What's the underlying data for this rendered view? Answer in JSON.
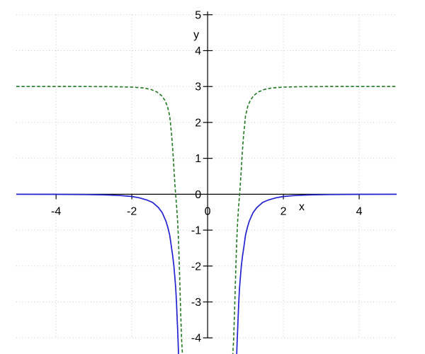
{
  "figure": {
    "background": "#ffffff",
    "axis_color": "#000000",
    "grid_color": "#c9c9c9"
  },
  "chart_data": {
    "type": "line",
    "title": "",
    "xlabel": "x",
    "ylabel": "y",
    "xlim": [
      -5.05,
      4.99
    ],
    "ylim": [
      -4.45,
      5.41
    ],
    "grid": true,
    "legend": "none",
    "x_ticks": [
      -4,
      -2,
      0,
      2,
      4
    ],
    "x_tick_labels": [
      "-4",
      "-2",
      "0",
      "2",
      "4"
    ],
    "y_ticks": [
      5,
      4,
      3,
      2,
      1,
      0,
      -1,
      -2,
      -3,
      -4
    ],
    "y_tick_labels": [
      "5",
      "4",
      "3",
      "2",
      "1",
      "0",
      "-1",
      "-2",
      "-3",
      "-4"
    ],
    "x_gridlines": [
      -4,
      -2,
      2,
      4
    ],
    "y_gridlines": [
      5,
      4,
      3,
      2,
      1,
      -1,
      -2,
      -3,
      -4
    ],
    "series": [
      {
        "name": "blue-solid-curve",
        "description": "even function ~ -1/(x^4 - 1/8); tails approach y=0 from below, vertical asymptotes near x = +/-0.6, visible branches dive below y=-4 at x ~ +/-0.77",
        "color": "#2222d2",
        "style": "solid",
        "line_width": 1.7,
        "symmetry": "even",
        "samples_right": [
          [
            0.767,
            -4.51
          ],
          [
            0.778,
            -4.15
          ],
          [
            0.79,
            -3.82
          ],
          [
            0.805,
            -3.42
          ],
          [
            0.82,
            -3.03
          ],
          [
            0.84,
            -2.66
          ],
          [
            0.86,
            -2.37
          ],
          [
            0.89,
            -2.0
          ],
          [
            0.92,
            -1.73
          ],
          [
            0.96,
            -1.44
          ],
          [
            1.0,
            -1.14
          ],
          [
            1.05,
            -0.92
          ],
          [
            1.1,
            -0.75
          ],
          [
            1.2,
            -0.51
          ],
          [
            1.3,
            -0.37
          ],
          [
            1.45,
            -0.23
          ],
          [
            1.6,
            -0.16
          ],
          [
            1.8,
            -0.1
          ],
          [
            2.0,
            -0.063
          ],
          [
            2.3,
            -0.036
          ],
          [
            2.7,
            -0.019
          ],
          [
            3.2,
            -0.01
          ],
          [
            4.0,
            -0.004
          ],
          [
            5.05,
            -0.002
          ]
        ]
      },
      {
        "name": "green-dashed-curve",
        "description": "even function with horizontal asymptote y=3; plunges to -infinity near x = +/-0.66; crosses y=0 at x ~ +/-0.85",
        "color": "#1f7a1f",
        "style": "dashed",
        "dash_pattern": "4.5 2.8",
        "line_width": 1.6,
        "symmetry": "even",
        "samples_right": [
          [
            0.662,
            -4.51
          ],
          [
            0.686,
            -4.05
          ],
          [
            0.71,
            -3.3
          ],
          [
            0.73,
            -2.62
          ],
          [
            0.748,
            -1.95
          ],
          [
            0.768,
            -1.3
          ],
          [
            0.79,
            -0.8
          ],
          [
            0.815,
            -0.38
          ],
          [
            0.845,
            0.0
          ],
          [
            0.88,
            0.55
          ],
          [
            0.915,
            1.15
          ],
          [
            0.95,
            1.65
          ],
          [
            1.0,
            2.18
          ],
          [
            1.06,
            2.45
          ],
          [
            1.13,
            2.62
          ],
          [
            1.22,
            2.75
          ],
          [
            1.34,
            2.85
          ],
          [
            1.5,
            2.92
          ],
          [
            1.7,
            2.96
          ],
          [
            2.0,
            2.985
          ],
          [
            2.5,
            2.997
          ],
          [
            3.2,
            3.0
          ],
          [
            5.05,
            3.0
          ]
        ]
      }
    ]
  }
}
